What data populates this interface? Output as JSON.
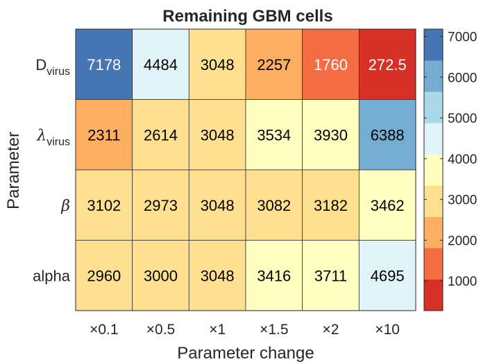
{
  "chart_data": {
    "type": "heatmap",
    "title": "Remaining GBM cells",
    "xlabel": "Parameter change",
    "ylabel": "Parameter",
    "x_categories": [
      "×0.1",
      "×0.5",
      "×1",
      "×1.5",
      "×2",
      "×10"
    ],
    "y_categories": [
      {
        "main": "D",
        "sub": "virus",
        "greek": false
      },
      {
        "main": "λ",
        "sub": "virus",
        "greek": true
      },
      {
        "main": "β",
        "sub": "",
        "greek": true
      },
      {
        "main": "alpha",
        "sub": "",
        "greek": false
      }
    ],
    "values": [
      [
        7178,
        4484,
        3048,
        2257,
        1760,
        272.5
      ],
      [
        2311,
        2614,
        3048,
        3534,
        3930,
        6388
      ],
      [
        3102,
        2973,
        3048,
        3082,
        3182,
        3462
      ],
      [
        2960,
        3000,
        3048,
        3416,
        3711,
        4695
      ]
    ],
    "value_labels": [
      [
        "7178",
        "4484",
        "3048",
        "2257",
        "1760",
        "272.5"
      ],
      [
        "2311",
        "2614",
        "3048",
        "3534",
        "3930",
        "6388"
      ],
      [
        "3102",
        "2973",
        "3048",
        "3082",
        "3182",
        "3462"
      ],
      [
        "2960",
        "3000",
        "3048",
        "3416",
        "3711",
        "4695"
      ]
    ],
    "colorbar": {
      "range": [
        272.5,
        7178
      ],
      "ticks": [
        1000,
        2000,
        3000,
        4000,
        5000,
        6000,
        7000
      ],
      "tick_labels": [
        "1000",
        "2000",
        "3000",
        "4000",
        "5000",
        "6000",
        "7000"
      ],
      "colors": [
        "#d73027",
        "#f46d43",
        "#fdae61",
        "#fee090",
        "#ffffbf",
        "#e0f3f8",
        "#abd9e9",
        "#74add1",
        "#4575b4"
      ]
    },
    "grid": false,
    "legend": "colorbar-right"
  }
}
